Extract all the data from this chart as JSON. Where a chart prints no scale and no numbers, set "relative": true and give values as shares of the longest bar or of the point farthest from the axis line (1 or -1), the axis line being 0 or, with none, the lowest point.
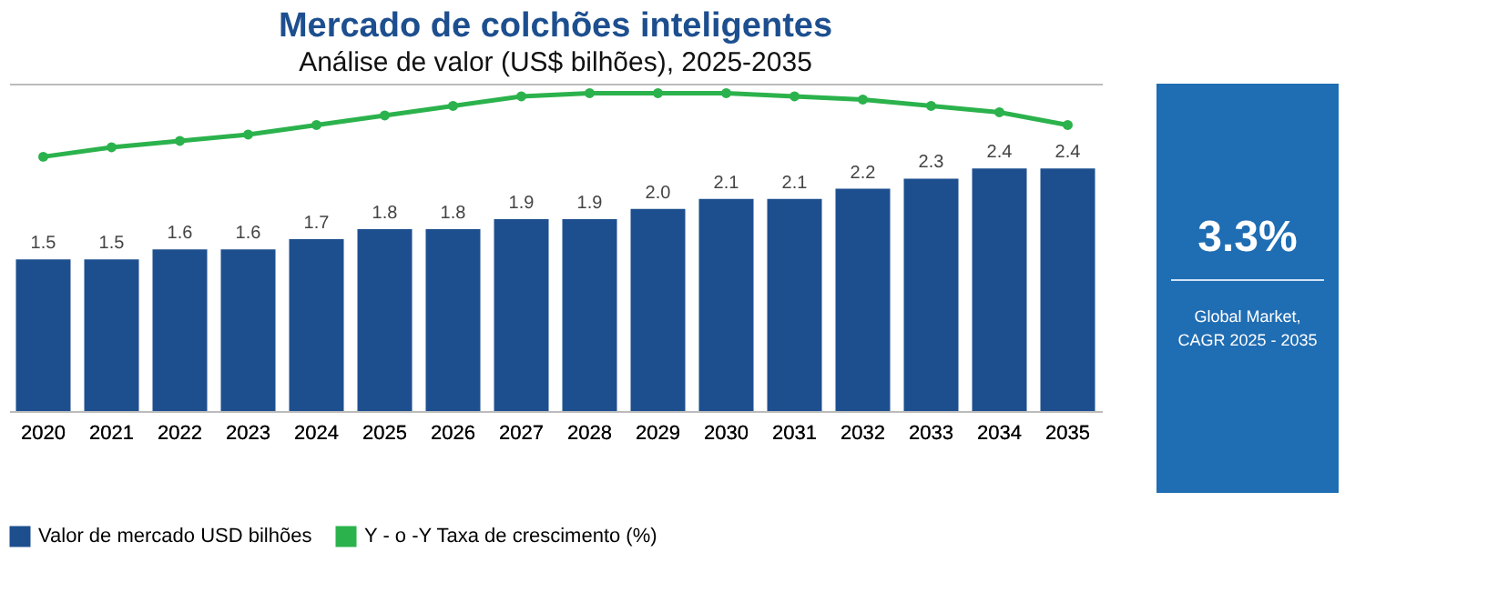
{
  "chart_data": [
    {
      "type": "bar",
      "title": "Mercado de colchões inteligentes",
      "subtitle": "Análise de valor (US$ bilhões), 2025-2035",
      "categories": [
        "2020",
        "2021",
        "2022",
        "2023",
        "2024",
        "2025",
        "2026",
        "2027",
        "2028",
        "2029",
        "2030",
        "2031",
        "2032",
        "2033",
        "2034",
        "2035"
      ],
      "series": [
        {
          "name": "Valor de mercado USD bilhões",
          "color": "#1d4f8f",
          "values": [
            1.5,
            1.5,
            1.6,
            1.6,
            1.7,
            1.8,
            1.8,
            1.9,
            1.9,
            2.0,
            2.1,
            2.1,
            2.2,
            2.3,
            2.4,
            2.4
          ],
          "value_labels": [
            "1.5",
            "1.5",
            "1.6",
            "1.6",
            "1.7",
            "1.8",
            "1.8",
            "1.9",
            "1.9",
            "2.0",
            "2.1",
            "2.1",
            "2.2",
            "2.3",
            "2.4",
            "2.4"
          ]
        }
      ],
      "legend": "bottom"
    },
    {
      "type": "line",
      "relative": true,
      "marker": "circle",
      "tick_labels": false,
      "categories": [
        "2020",
        "2021",
        "2022",
        "2023",
        "2024",
        "2025",
        "2026",
        "2027",
        "2028",
        "2029",
        "2030",
        "2031",
        "2032",
        "2033",
        "2034",
        "2035"
      ],
      "series": [
        {
          "name": "Y - o -Y Taxa de crescimento (%)",
          "color": "#2bb24c",
          "values": [
            0.8,
            0.83,
            0.85,
            0.87,
            0.9,
            0.93,
            0.96,
            0.99,
            1.0,
            1.0,
            1.0,
            0.99,
            0.98,
            0.96,
            0.94,
            0.9
          ]
        }
      ],
      "legend": "bottom"
    },
    {
      "type": "other",
      "title": "3.3%",
      "annotations": [
        "Global Market,",
        "CAGR 2025 - 2035"
      ]
    }
  ]
}
